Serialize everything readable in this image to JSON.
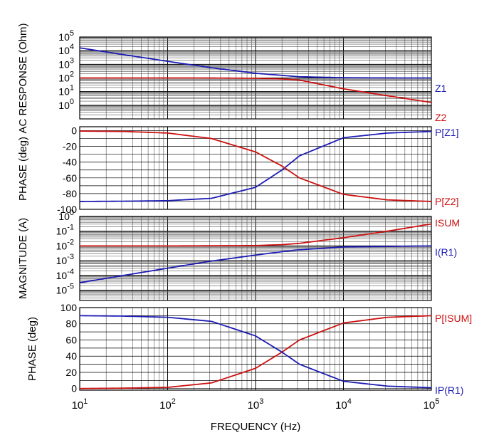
{
  "chart_data": [
    {
      "type": "line",
      "ylabel": "AC RESPONSE  (Ohm)",
      "yscale": "log",
      "ylim": [
        0.1,
        100000
      ],
      "ytick_labels": [
        {
          "v": 1,
          "base": "10",
          "exp": "0"
        },
        {
          "v": 10,
          "base": "10",
          "exp": "1"
        },
        {
          "v": 100,
          "base": "10",
          "exp": "2"
        },
        {
          "v": 1000,
          "base": "10",
          "exp": "3"
        },
        {
          "v": 10000,
          "base": "10",
          "exp": "4"
        },
        {
          "v": 100000,
          "base": "10",
          "exp": "5"
        }
      ],
      "series": [
        {
          "name": "Z1",
          "color": "#1c1cb4",
          "x": [
            10,
            31.6,
            100,
            316,
            1000,
            3160,
            10000,
            31600,
            100000
          ],
          "y": [
            16000,
            5100,
            1650,
            560,
            220,
            123,
            104,
            100.5,
            100
          ]
        },
        {
          "name": "Z2",
          "color": "#cc1111",
          "x": [
            10,
            100,
            300,
            1000,
            2000,
            3160,
            10000,
            31600,
            100000
          ],
          "y": [
            100,
            100,
            99.5,
            95,
            85,
            70,
            16,
            5,
            1.6
          ]
        }
      ]
    },
    {
      "type": "line",
      "ylabel": "PHASE  (deg)",
      "yscale": "linear",
      "ylim": [
        -100,
        5
      ],
      "yticks": [
        0,
        -20,
        -40,
        -60,
        -80,
        -100
      ],
      "series": [
        {
          "name": "P[Z1]",
          "color": "#1c1cb4",
          "x": [
            10,
            31.6,
            100,
            316,
            1000,
            2000,
            3160,
            10000,
            31600,
            100000
          ],
          "y": [
            -90,
            -89.7,
            -89,
            -86,
            -72,
            -50,
            -32,
            -9,
            -3,
            -1
          ]
        },
        {
          "name": "P[Z2]",
          "color": "#cc1111",
          "x": [
            10,
            31.6,
            100,
            316,
            1000,
            2000,
            3160,
            10000,
            31600,
            100000
          ],
          "y": [
            -0.5,
            -1,
            -3,
            -10,
            -27,
            -45,
            -60,
            -81,
            -88,
            -90
          ]
        }
      ]
    },
    {
      "type": "line",
      "ylabel": "MAGNITUDE  (A)",
      "yscale": "log",
      "ylim": [
        2e-06,
        1
      ],
      "ytick_labels": [
        {
          "v": 1,
          "base": "10",
          "exp": "0"
        },
        {
          "v": 0.1,
          "base": "10",
          "exp": "-1"
        },
        {
          "v": 0.01,
          "base": "10",
          "exp": "-2"
        },
        {
          "v": 0.001,
          "base": "10",
          "exp": "-3"
        },
        {
          "v": 0.0001,
          "base": "10",
          "exp": "-4"
        },
        {
          "v": 1e-05,
          "base": "10",
          "exp": "-5"
        }
      ],
      "series": [
        {
          "name": "ISUM",
          "color": "#cc1111",
          "x": [
            10,
            100,
            1000,
            2000,
            3160,
            10000,
            31600,
            100000
          ],
          "y": [
            0.01,
            0.01,
            0.0106,
            0.0122,
            0.015,
            0.0362,
            0.1,
            0.31
          ]
        },
        {
          "name": "I(R1)",
          "color": "#1c1cb4",
          "x": [
            10,
            31.6,
            100,
            316,
            1000,
            2000,
            3160,
            10000,
            100000
          ],
          "y": [
            3.2e-05,
            0.0001,
            0.00031,
            0.00094,
            0.0024,
            0.0041,
            0.0055,
            0.0085,
            0.01
          ]
        }
      ]
    },
    {
      "type": "line",
      "ylabel": "PHASE  (deg)",
      "yscale": "linear",
      "ylim": [
        -2,
        100
      ],
      "yticks": [
        100,
        80,
        60,
        40,
        20,
        0
      ],
      "series": [
        {
          "name": "P[ISUM]",
          "color": "#cc1111",
          "x": [
            10,
            31.6,
            100,
            316,
            1000,
            2000,
            3160,
            10000,
            31600,
            100000
          ],
          "y": [
            0,
            0.5,
            1.5,
            7,
            25,
            45,
            60,
            81,
            88,
            90
          ]
        },
        {
          "name": "IP(R1)",
          "color": "#1c1cb4",
          "x": [
            10,
            31.6,
            100,
            316,
            1000,
            2000,
            3160,
            10000,
            31600,
            100000
          ],
          "y": [
            90,
            89.5,
            88,
            83,
            65,
            45,
            30,
            9,
            3,
            1
          ]
        }
      ]
    }
  ],
  "xaxis": {
    "label": "FREQUENCY  (Hz)",
    "scale": "log",
    "xlim": [
      10,
      100000
    ],
    "tick_labels": [
      {
        "v": 10,
        "base": "10",
        "exp": "1"
      },
      {
        "v": 100,
        "base": "10",
        "exp": "2"
      },
      {
        "v": 1000,
        "base": "10",
        "exp": "3"
      },
      {
        "v": 10000,
        "base": "10",
        "exp": "4"
      },
      {
        "v": 100000,
        "base": "10",
        "exp": "5"
      }
    ]
  },
  "grid": true
}
